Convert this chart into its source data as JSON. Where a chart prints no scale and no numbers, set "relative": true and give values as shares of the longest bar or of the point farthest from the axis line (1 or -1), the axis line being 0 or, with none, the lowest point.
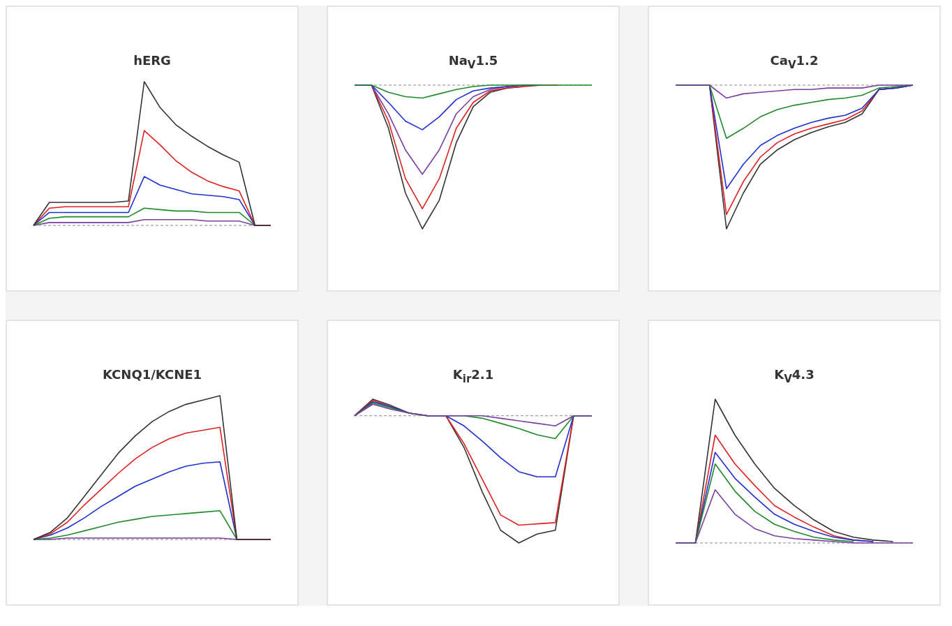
{
  "chart_data": [
    {
      "type": "line",
      "title": "hERG",
      "relative": true,
      "marker": "none",
      "categories": [
        null,
        null,
        null,
        null,
        null,
        null,
        null,
        null,
        null,
        null,
        null,
        null,
        null,
        null,
        null,
        null
      ],
      "ref_lines": [
        {
          "axis": "y",
          "value": 0,
          "line_style": "dashed",
          "color": "#888888"
        }
      ],
      "series": [
        {
          "color": "#7a3fa0",
          "values": [
            0,
            0.02,
            0.02,
            0.02,
            0.02,
            0.02,
            0.02,
            0.04,
            0.04,
            0.04,
            0.04,
            0.03,
            0.03,
            0.03,
            0,
            0
          ]
        },
        {
          "color": "#1f8a2a",
          "values": [
            0,
            0.05,
            0.06,
            0.06,
            0.06,
            0.06,
            0.06,
            0.12,
            0.11,
            0.1,
            0.1,
            0.09,
            0.09,
            0.09,
            0,
            0
          ]
        },
        {
          "color": "#1f2fd0",
          "values": [
            0,
            0.09,
            0.09,
            0.09,
            0.09,
            0.09,
            0.09,
            0.34,
            0.28,
            0.25,
            0.22,
            0.21,
            0.2,
            0.18,
            0,
            0
          ]
        },
        {
          "color": "#e02020",
          "values": [
            0,
            0.12,
            0.13,
            0.13,
            0.13,
            0.13,
            0.13,
            0.66,
            0.56,
            0.45,
            0.37,
            0.31,
            0.27,
            0.24,
            0,
            0
          ]
        },
        {
          "color": "#333333",
          "values": [
            0,
            0.16,
            0.16,
            0.16,
            0.16,
            0.16,
            0.17,
            1,
            0.82,
            0.7,
            0.62,
            0.55,
            0.49,
            0.44,
            0,
            0
          ]
        }
      ]
    },
    {
      "type": "line",
      "title": "Na$_{V}$1.5",
      "relative": true,
      "marker": "none",
      "categories": [
        null,
        null,
        null,
        null,
        null,
        null,
        null,
        null,
        null,
        null,
        null,
        null,
        null,
        null,
        null
      ],
      "ref_lines": [
        {
          "axis": "y",
          "value": 0,
          "line_style": "dashed",
          "color": "#888888"
        }
      ],
      "series": [
        {
          "color": "#333333",
          "values": [
            0,
            0,
            -0.3,
            -0.75,
            -1,
            -0.8,
            -0.4,
            -0.15,
            -0.05,
            -0.02,
            -0.01,
            null,
            null,
            null,
            null
          ]
        },
        {
          "color": "#e02020",
          "values": [
            0,
            0,
            -0.25,
            -0.65,
            -0.86,
            -0.65,
            -0.3,
            -0.12,
            -0.04,
            -0.02,
            -0.01,
            0,
            0,
            null,
            null
          ]
        },
        {
          "color": "#7a3fa0",
          "values": [
            0,
            0,
            -0.2,
            -0.45,
            -0.62,
            -0.45,
            -0.2,
            -0.08,
            -0.03,
            -0.01,
            0,
            0,
            null,
            null,
            null
          ]
        },
        {
          "color": "#1f2fd0",
          "values": [
            0,
            0,
            -0.12,
            -0.25,
            -0.31,
            -0.22,
            -0.1,
            -0.04,
            -0.02,
            -0.01,
            0,
            0,
            null,
            null,
            null
          ]
        },
        {
          "color": "#1f8a2a",
          "values": [
            0,
            0,
            -0.05,
            -0.08,
            -0.09,
            -0.06,
            -0.03,
            -0.01,
            0,
            0,
            0,
            0,
            0,
            0,
            0
          ]
        }
      ]
    },
    {
      "type": "line",
      "title": "Ca$_{V}$1.2",
      "relative": true,
      "marker": "none",
      "categories": [
        null,
        null,
        null,
        null,
        null,
        null,
        null,
        null,
        null,
        null,
        null,
        null,
        null,
        null,
        null
      ],
      "ref_lines": [
        {
          "axis": "y",
          "value": 0,
          "line_style": "dashed",
          "color": "#888888"
        }
      ],
      "series": [
        {
          "color": "#333333",
          "values": [
            0,
            0,
            0,
            -1,
            -0.75,
            -0.55,
            -0.45,
            -0.38,
            -0.33,
            -0.29,
            -0.26,
            -0.2,
            -0.03,
            -0.02,
            0
          ]
        },
        {
          "color": "#e02020",
          "values": [
            0,
            0,
            0,
            -0.9,
            -0.67,
            -0.5,
            -0.4,
            -0.34,
            -0.3,
            -0.27,
            -0.24,
            -0.18,
            -0.03,
            -0.02,
            0
          ]
        },
        {
          "color": "#1f2fd0",
          "values": [
            0,
            0,
            0,
            -0.72,
            -0.55,
            -0.42,
            -0.35,
            -0.3,
            -0.26,
            -0.23,
            -0.21,
            -0.16,
            -0.03,
            -0.02,
            0
          ]
        },
        {
          "color": "#1f8a2a",
          "values": [
            0,
            0,
            0,
            -0.37,
            -0.3,
            -0.22,
            -0.17,
            -0.14,
            -0.12,
            -0.1,
            -0.09,
            -0.07,
            -0.02,
            -0.01,
            0
          ]
        },
        {
          "color": "#7a3fa0",
          "values": [
            0,
            0,
            0,
            -0.09,
            -0.06,
            -0.05,
            -0.04,
            -0.03,
            -0.03,
            -0.02,
            -0.02,
            -0.02,
            0,
            0,
            0
          ]
        }
      ]
    },
    {
      "type": "line",
      "title": "KCNQ1/KCNE1",
      "relative": true,
      "marker": "none",
      "categories": [
        null,
        null,
        null,
        null,
        null,
        null,
        null,
        null,
        null,
        null,
        null,
        null,
        null,
        null,
        null
      ],
      "ref_lines": [
        {
          "axis": "y",
          "value": 0,
          "line_style": "dashed",
          "color": "#888888"
        }
      ],
      "series": [
        {
          "color": "#7a3fa0",
          "values": [
            0,
            0,
            0.01,
            0.01,
            0.01,
            0.01,
            0.01,
            0.01,
            0.01,
            0.01,
            0.01,
            0.01,
            0,
            0,
            0
          ]
        },
        {
          "color": "#1f8a2a",
          "values": [
            0,
            0.01,
            0.03,
            0.06,
            0.09,
            0.12,
            0.14,
            0.16,
            0.17,
            0.18,
            0.19,
            0.2,
            0,
            0,
            0
          ]
        },
        {
          "color": "#1f2fd0",
          "values": [
            0,
            0.03,
            0.08,
            0.15,
            0.23,
            0.3,
            0.37,
            0.42,
            0.47,
            0.51,
            0.53,
            0.54,
            0,
            0,
            0
          ]
        },
        {
          "color": "#e02020",
          "values": [
            0,
            0.04,
            0.12,
            0.24,
            0.35,
            0.46,
            0.56,
            0.64,
            0.7,
            0.74,
            0.76,
            0.78,
            0,
            0,
            0
          ]
        },
        {
          "color": "#333333",
          "values": [
            0,
            0.05,
            0.15,
            0.3,
            0.45,
            0.6,
            0.72,
            0.82,
            0.89,
            0.94,
            0.97,
            1,
            0,
            0,
            0
          ]
        }
      ]
    },
    {
      "type": "line",
      "title": "K$_{ir}$2.1",
      "relative": true,
      "marker": "none",
      "categories": [
        null,
        null,
        null,
        null,
        null,
        null,
        null,
        null,
        null,
        null,
        null,
        null,
        null,
        null
      ],
      "ref_lines": [
        {
          "axis": "y",
          "value": 0,
          "line_style": "dashed",
          "color": "#888888"
        }
      ],
      "series": [
        {
          "color": "#333333",
          "values": [
            0,
            0.13,
            0.08,
            0.02,
            0,
            0,
            -0.25,
            -0.6,
            -0.9,
            -1,
            -0.93,
            -0.9,
            0,
            0
          ]
        },
        {
          "color": "#e02020",
          "values": [
            0,
            0.12,
            0.07,
            0.02,
            0,
            0,
            -0.22,
            -0.5,
            -0.78,
            -0.86,
            -0.85,
            -0.84,
            0,
            0
          ]
        },
        {
          "color": "#1f2fd0",
          "values": [
            0,
            0.11,
            0.07,
            0.02,
            0,
            0,
            -0.08,
            -0.2,
            -0.33,
            -0.44,
            -0.48,
            -0.48,
            0,
            0
          ]
        },
        {
          "color": "#1f8a2a",
          "values": [
            0,
            0.1,
            0.06,
            0.02,
            0,
            0,
            0,
            -0.02,
            -0.06,
            -0.1,
            -0.15,
            -0.18,
            0,
            0
          ]
        },
        {
          "color": "#7a3fa0",
          "values": [
            0,
            0.09,
            0.05,
            0.02,
            0,
            0,
            0,
            0,
            -0.02,
            -0.04,
            -0.06,
            -0.08,
            0,
            0
          ]
        }
      ]
    },
    {
      "type": "line",
      "title": "K$_{V}$4.3",
      "relative": true,
      "marker": "none",
      "categories": [
        null,
        null,
        null,
        null,
        null,
        null,
        null,
        null,
        null,
        null,
        null,
        null,
        null
      ],
      "ref_lines": [
        {
          "axis": "y",
          "value": 0,
          "line_style": "dashed",
          "color": "#888888"
        }
      ],
      "series": [
        {
          "color": "#333333",
          "values": [
            0,
            0,
            1,
            0.75,
            0.55,
            0.38,
            0.26,
            0.16,
            0.08,
            0.04,
            0.02,
            0.01,
            null
          ]
        },
        {
          "color": "#e02020",
          "values": [
            0,
            0,
            0.75,
            0.55,
            0.4,
            0.26,
            0.18,
            0.11,
            0.05,
            0.02,
            0.01,
            null,
            null
          ]
        },
        {
          "color": "#1f2fd0",
          "values": [
            0,
            0,
            0.63,
            0.45,
            0.32,
            0.2,
            0.13,
            0.08,
            0.04,
            0.02,
            0.01,
            null,
            null
          ]
        },
        {
          "color": "#1f8a2a",
          "values": [
            0,
            0,
            0.55,
            0.36,
            0.22,
            0.13,
            0.08,
            0.04,
            0.02,
            0.01,
            null,
            null,
            null
          ]
        },
        {
          "color": "#7a3fa0",
          "values": [
            0,
            0,
            0.37,
            0.2,
            0.1,
            0.05,
            0.03,
            0.02,
            0.01,
            0,
            0,
            0,
            0
          ]
        }
      ]
    }
  ]
}
